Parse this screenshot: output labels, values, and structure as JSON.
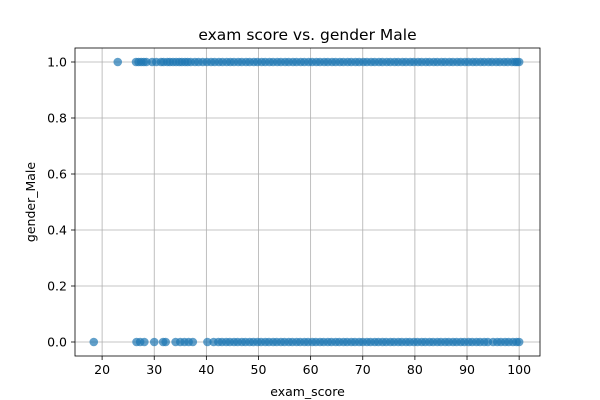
{
  "chart_data": {
    "type": "scatter",
    "title": "exam score vs. gender Male",
    "xlabel": "exam_score",
    "ylabel": "gender_Male",
    "xlim": [
      14.8,
      104.0
    ],
    "ylim": [
      -0.05,
      1.05
    ],
    "xticks": [
      20,
      30,
      40,
      50,
      60,
      70,
      80,
      90,
      100
    ],
    "xtick_labels": [
      "20",
      "30",
      "40",
      "50",
      "60",
      "70",
      "80",
      "90",
      "100"
    ],
    "yticks": [
      0.0,
      0.2,
      0.4,
      0.6,
      0.8,
      1.0
    ],
    "ytick_labels": [
      "0.0",
      "0.2",
      "0.4",
      "0.6",
      "0.8",
      "1.0"
    ],
    "grid": true,
    "color": "#1f77b4",
    "series": [
      {
        "y": 1,
        "x": [
          23.0,
          26.5,
          27.0,
          27.5,
          28.0,
          28.5,
          29.6,
          30.4,
          31.3,
          31.8,
          32.5,
          33.0,
          33.6,
          34.2,
          34.8,
          35.3,
          35.9,
          36.4,
          37.0,
          37.8,
          38.5,
          39.3,
          40.1,
          40.9,
          41.6,
          42.4,
          43.1,
          43.9,
          44.6,
          45.3,
          46.1,
          46.8,
          47.6,
          48.3,
          49.1,
          49.8,
          50.6,
          51.3,
          52.1,
          52.8,
          53.6,
          54.3,
          55.1,
          55.8,
          56.6,
          57.3,
          58.1,
          58.8,
          59.6,
          60.3,
          61.1,
          61.8,
          62.6,
          63.3,
          64.1,
          64.8,
          65.6,
          66.3,
          67.1,
          67.8,
          68.6,
          69.3,
          70.1,
          70.8,
          71.6,
          72.3,
          73.1,
          73.8,
          74.6,
          75.3,
          76.1,
          76.8,
          77.6,
          78.3,
          79.1,
          79.8,
          80.6,
          81.3,
          82.1,
          82.8,
          83.6,
          84.3,
          85.1,
          85.8,
          86.6,
          87.3,
          88.1,
          88.8,
          89.6,
          90.3,
          91.1,
          91.8,
          92.6,
          93.3,
          94.1,
          94.8,
          95.6,
          96.3,
          97.1,
          97.8,
          98.6,
          99.2,
          99.6,
          100.0
        ]
      },
      {
        "y": 0,
        "x": [
          18.4,
          26.6,
          27.3,
          28.1,
          30.0,
          31.7,
          32.2,
          34.1,
          35.0,
          35.8,
          36.6,
          37.4,
          40.2,
          41.4,
          42.3,
          43.0,
          43.8,
          44.5,
          45.3,
          46.0,
          46.8,
          47.5,
          48.3,
          49.0,
          49.8,
          50.5,
          51.3,
          52.0,
          52.8,
          53.5,
          54.3,
          55.0,
          55.8,
          56.5,
          57.3,
          58.0,
          58.8,
          59.5,
          60.3,
          61.0,
          61.8,
          62.5,
          63.3,
          64.0,
          64.8,
          65.5,
          66.3,
          67.0,
          67.8,
          68.5,
          69.3,
          70.0,
          70.8,
          71.5,
          72.3,
          73.0,
          73.8,
          74.5,
          75.3,
          76.0,
          76.8,
          77.5,
          78.3,
          79.0,
          79.8,
          80.5,
          81.3,
          82.0,
          82.8,
          83.5,
          84.3,
          85.0,
          85.8,
          86.5,
          87.3,
          88.0,
          88.8,
          89.5,
          90.3,
          91.0,
          91.8,
          92.5,
          93.3,
          94.0,
          95.0,
          95.8,
          96.5,
          97.3,
          98.0,
          98.8,
          99.5,
          100.0
        ]
      }
    ]
  }
}
